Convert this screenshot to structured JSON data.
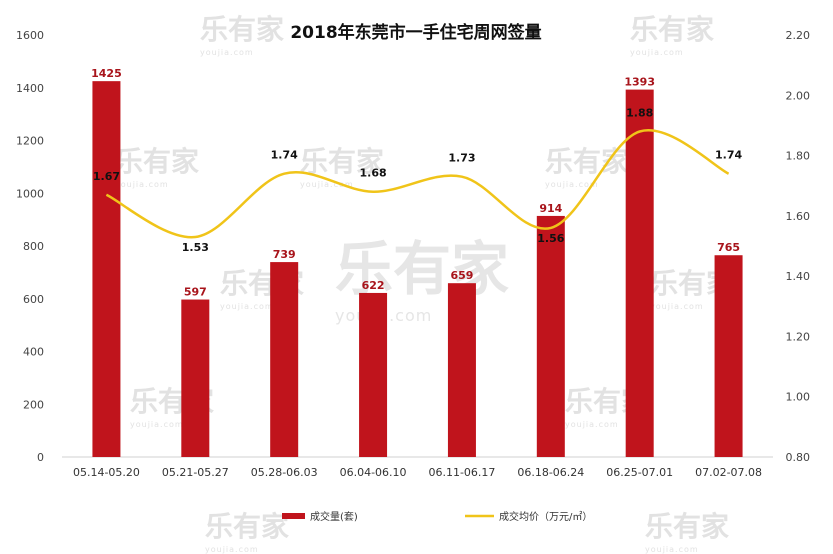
{
  "watermark": {
    "brand": "乐有家",
    "domain": "youjia.com"
  },
  "chart_data": {
    "type": "bar+line",
    "title": "2018年东莞市一手住宅周网签量",
    "categories": [
      "05.14-05.20",
      "05.21-05.27",
      "05.28-06.03",
      "06.04-06.10",
      "06.11-06.17",
      "06.18-06.24",
      "06.25-07.01",
      "07.02-07.08"
    ],
    "series": [
      {
        "name": "成交量(套)",
        "type": "bar",
        "axis": "left",
        "color": "#c0141c",
        "values": [
          1425,
          597,
          739,
          622,
          659,
          914,
          1393,
          765
        ]
      },
      {
        "name": "成交均价（万元/㎡）",
        "type": "line",
        "axis": "right",
        "color": "#f0c419",
        "values": [
          1.67,
          1.53,
          1.74,
          1.68,
          1.73,
          1.56,
          1.88,
          1.74
        ]
      }
    ],
    "y_left": {
      "min": 0,
      "max": 1600,
      "ticks": [
        "0",
        "200",
        "400",
        "600",
        "800",
        "1000",
        "1200",
        "1400",
        "1600"
      ]
    },
    "y_right": {
      "min": 0.8,
      "max": 2.2,
      "ticks": [
        "0.80",
        "1.00",
        "1.20",
        "1.40",
        "1.60",
        "1.80",
        "2.00",
        "2.20"
      ]
    },
    "bar_labels": [
      "1425",
      "597",
      "739",
      "622",
      "659",
      "914",
      "1393",
      "765"
    ],
    "line_labels": [
      "1.67",
      "1.53",
      "1.74",
      "1.68",
      "1.73",
      "1.56",
      "1.88",
      "1.74"
    ],
    "legend_position": "bottom",
    "grid": false
  }
}
